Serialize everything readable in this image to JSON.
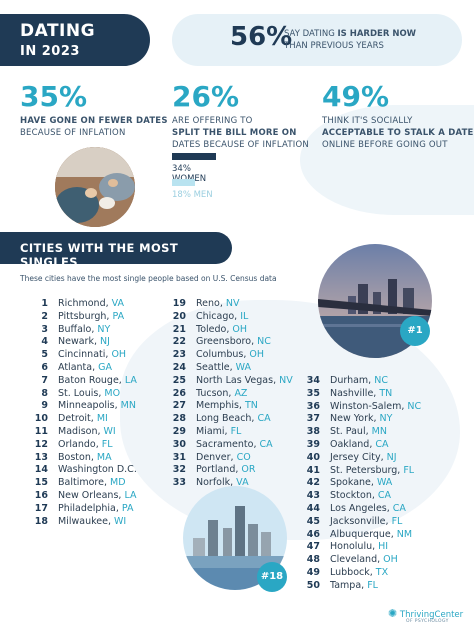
{
  "header": {
    "title_line1": "DATING",
    "title_line2": "IN 2023",
    "stat_value": "56%",
    "stat_text_a": "SAY DATING ",
    "stat_text_b": "IS HARDER NOW",
    "stat_text_c": "THAN PREVIOUS YEARS"
  },
  "stats": [
    {
      "value": "35%",
      "line1": "HAVE GONE ON FEWER DATES",
      "line2": "BECAUSE OF INFLATION"
    },
    {
      "value": "26%",
      "line1": "ARE OFFERING TO",
      "line2": "SPLIT THE BILL MORE ON",
      "line3": "DATES BECAUSE OF INFLATION"
    },
    {
      "value": "49%",
      "line1": "THINK IT'S SOCIALLY",
      "line2": "ACCEPTABLE TO STALK A DATE",
      "line3": "ONLINE BEFORE GOING OUT"
    }
  ],
  "gender_bars": [
    {
      "label": "34% WOMEN",
      "fraction": 0.34,
      "color": "#1f3a55"
    },
    {
      "label": "18% MEN",
      "fraction": 0.18,
      "color": "#b9e3f0"
    }
  ],
  "section": {
    "title": "CITIES WITH THE MOST SINGLES",
    "subtitle": "These cities have the most single people based on U.S. Census data"
  },
  "badges": {
    "first": "#1",
    "eighteenth": "#18"
  },
  "cities_col1": [
    {
      "n": "1",
      "city": "Richmond, ",
      "st": "VA"
    },
    {
      "n": "2",
      "city": "Pittsburgh, ",
      "st": "PA"
    },
    {
      "n": "3",
      "city": "Buffalo, ",
      "st": "NY"
    },
    {
      "n": "4",
      "city": "Newark, ",
      "st": "NJ"
    },
    {
      "n": "5",
      "city": "Cincinnati, ",
      "st": "OH"
    },
    {
      "n": "6",
      "city": "Atlanta, ",
      "st": "GA"
    },
    {
      "n": "7",
      "city": "Baton Rouge, ",
      "st": "LA"
    },
    {
      "n": "8",
      "city": "St. Louis, ",
      "st": "MO"
    },
    {
      "n": "9",
      "city": "Minneapolis, ",
      "st": "MN"
    },
    {
      "n": "10",
      "city": "Detroit, ",
      "st": "MI"
    },
    {
      "n": "11",
      "city": "Madison, ",
      "st": "WI"
    },
    {
      "n": "12",
      "city": "Orlando, ",
      "st": "FL"
    },
    {
      "n": "13",
      "city": "Boston, ",
      "st": "MA"
    },
    {
      "n": "14",
      "city": "Washington D.C.",
      "st": ""
    },
    {
      "n": "15",
      "city": "Baltimore, ",
      "st": "MD"
    },
    {
      "n": "16",
      "city": "New Orleans, ",
      "st": "LA"
    },
    {
      "n": "17",
      "city": "Philadelphia, ",
      "st": "PA"
    },
    {
      "n": "18",
      "city": "Milwaukee, ",
      "st": "WI"
    }
  ],
  "cities_col2": [
    {
      "n": "19",
      "city": "Reno, ",
      "st": "NV"
    },
    {
      "n": "20",
      "city": "Chicago, ",
      "st": "IL"
    },
    {
      "n": "21",
      "city": "Toledo, ",
      "st": "OH"
    },
    {
      "n": "22",
      "city": "Greensboro, ",
      "st": "NC"
    },
    {
      "n": "23",
      "city": "Columbus, ",
      "st": "OH"
    },
    {
      "n": "24",
      "city": "Seattle, ",
      "st": "WA"
    },
    {
      "n": "25",
      "city": "North Las Vegas, ",
      "st": "NV"
    },
    {
      "n": "26",
      "city": "Tucson, ",
      "st": "AZ"
    },
    {
      "n": "27",
      "city": "Memphis, ",
      "st": "TN"
    },
    {
      "n": "28",
      "city": "Long Beach, ",
      "st": "CA"
    },
    {
      "n": "29",
      "city": "Miami, ",
      "st": "FL"
    },
    {
      "n": "30",
      "city": "Sacramento, ",
      "st": "CA"
    },
    {
      "n": "31",
      "city": "Denver, ",
      "st": "CO"
    },
    {
      "n": "32",
      "city": "Portland, ",
      "st": "OR"
    },
    {
      "n": "33",
      "city": "Norfolk, ",
      "st": "VA"
    }
  ],
  "cities_col3": [
    {
      "n": "34",
      "city": "Durham, ",
      "st": "NC"
    },
    {
      "n": "35",
      "city": "Nashville, ",
      "st": "TN"
    },
    {
      "n": "36",
      "city": "Winston-Salem, ",
      "st": "NC"
    },
    {
      "n": "37",
      "city": "New York, ",
      "st": "NY"
    },
    {
      "n": "38",
      "city": "St. Paul, ",
      "st": "MN"
    },
    {
      "n": "39",
      "city": "Oakland, ",
      "st": "CA"
    },
    {
      "n": "40",
      "city": "Jersey City, ",
      "st": "NJ"
    },
    {
      "n": "41",
      "city": "St. Petersburg, ",
      "st": "FL"
    },
    {
      "n": "42",
      "city": "Spokane, ",
      "st": "WA"
    },
    {
      "n": "43",
      "city": "Stockton, ",
      "st": "CA"
    },
    {
      "n": "44",
      "city": "Los Angeles, ",
      "st": "CA"
    },
    {
      "n": "45",
      "city": "Jacksonville, ",
      "st": "FL"
    },
    {
      "n": "46",
      "city": "Albuquerque, ",
      "st": "NM"
    },
    {
      "n": "47",
      "city": "Honolulu, ",
      "st": "HI"
    },
    {
      "n": "48",
      "city": "Cleveland, ",
      "st": "OH"
    },
    {
      "n": "49",
      "city": "Lubbock, ",
      "st": "TX"
    },
    {
      "n": "50",
      "city": "Tampa, ",
      "st": "FL"
    }
  ],
  "logo": {
    "name": "ThrivingCenter",
    "sub": "OF PSYCHOLOGY",
    "icon": "sparkle-icon"
  }
}
